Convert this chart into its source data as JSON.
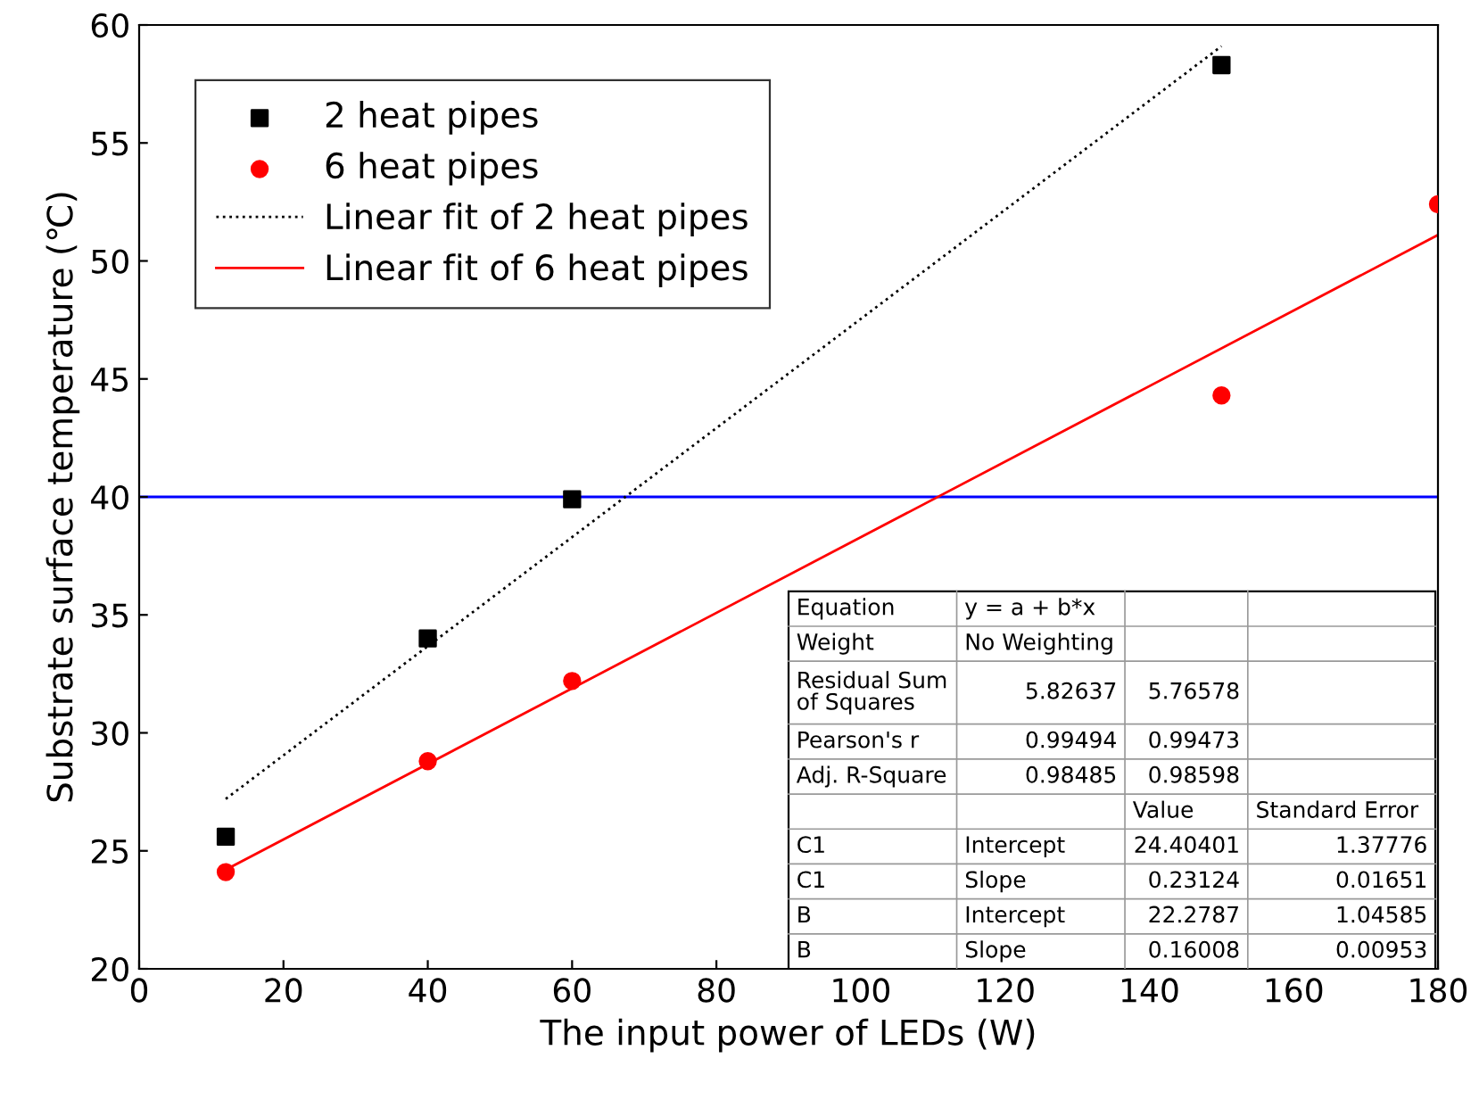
{
  "chart_data": {
    "type": "scatter",
    "xlabel": "The input power of LEDs (W)",
    "ylabel": "Substrate surface temperature (℃)",
    "xlim": [
      0,
      180
    ],
    "xticks": [
      0,
      20,
      40,
      60,
      80,
      100,
      120,
      140,
      160,
      180
    ],
    "ylim": [
      20,
      60
    ],
    "yticks": [
      20,
      25,
      30,
      35,
      40,
      45,
      50,
      55,
      60
    ],
    "grid": false,
    "legend": "top left",
    "series": [
      {
        "name": "2 heat pipes",
        "marker": "square",
        "color": "#000000",
        "x": [
          12,
          40,
          60,
          150
        ],
        "values": [
          25.6,
          34.0,
          39.9,
          58.3
        ]
      },
      {
        "name": "6 heat pipes",
        "marker": "circle",
        "color": "#ff0000",
        "x": [
          12,
          40,
          60,
          150,
          180
        ],
        "values": [
          24.1,
          28.8,
          32.2,
          44.3,
          52.4
        ]
      },
      {
        "name": "Linear fit of 2 heat pipes",
        "type": "line",
        "line_style": "dotted",
        "marker": "none",
        "color": "#000000",
        "x": [
          12,
          150
        ],
        "values": [
          27.2,
          59.1
        ]
      },
      {
        "name": "Linear fit of 6 heat pipes",
        "type": "line",
        "line_style": "solid",
        "marker": "none",
        "color": "#ff0000",
        "x": [
          12,
          180
        ],
        "values": [
          24.2,
          51.1
        ]
      }
    ],
    "ref_lines": [
      {
        "axis": "y",
        "value": 40,
        "color": "#0000ff",
        "line_style": "solid"
      }
    ],
    "annotations": [
      "Equation",
      "y = a + b*x",
      "Weight",
      "No Weighting",
      "Residual Sum\nof Squares",
      "5.82637",
      "5.76578",
      "Pearson's r",
      "0.99494",
      "0.99473",
      "Adj. R-Square",
      "0.98485",
      "0.98598",
      "Value",
      "Standard Error",
      "C1",
      "Intercept",
      "24.40401",
      "1.37776",
      "C1",
      "Slope",
      "0.23124",
      "0.01651",
      "B",
      "Intercept",
      "22.2787",
      "1.04585",
      "B",
      "Slope",
      "0.16008",
      "0.00953"
    ]
  }
}
